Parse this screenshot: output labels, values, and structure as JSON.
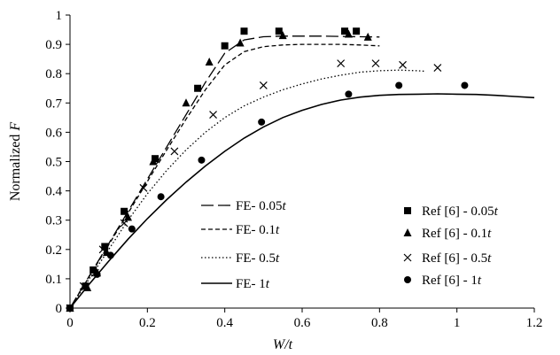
{
  "chart_data": {
    "type": "line",
    "title": "",
    "xlabel": "W/t",
    "ylabel": "Normalized F",
    "xlim": [
      0,
      1.2
    ],
    "ylim": [
      0,
      1
    ],
    "xticks": [
      "0",
      "0.2",
      "0.4",
      "0.6",
      "0.8",
      "1",
      "1.2"
    ],
    "yticks": [
      "0",
      "0.1",
      "0.2",
      "0.3",
      "0.4",
      "0.5",
      "0.6",
      "0.7",
      "0.8",
      "0.9",
      "1"
    ],
    "grid": false,
    "series": [
      {
        "name": "FE- 0.05t",
        "kind": "line",
        "dash": "long-dash",
        "x": [
          0,
          0.05,
          0.1,
          0.15,
          0.2,
          0.25,
          0.3,
          0.35,
          0.4,
          0.45,
          0.5,
          0.55,
          0.6,
          0.65,
          0.7,
          0.75,
          0.8
        ],
        "y": [
          0,
          0.11,
          0.22,
          0.33,
          0.44,
          0.55,
          0.66,
          0.77,
          0.87,
          0.915,
          0.926,
          0.928,
          0.928,
          0.928,
          0.927,
          0.926,
          0.925
        ]
      },
      {
        "name": "FE- 0.1t",
        "kind": "line",
        "dash": "short-dash",
        "x": [
          0,
          0.05,
          0.1,
          0.15,
          0.2,
          0.25,
          0.3,
          0.35,
          0.4,
          0.45,
          0.5,
          0.55,
          0.6,
          0.65,
          0.7,
          0.75,
          0.8
        ],
        "y": [
          0,
          0.108,
          0.216,
          0.324,
          0.432,
          0.54,
          0.645,
          0.745,
          0.83,
          0.875,
          0.892,
          0.898,
          0.9,
          0.9,
          0.9,
          0.898,
          0.895
        ]
      },
      {
        "name": "FE- 0.5t",
        "kind": "line",
        "dash": "dotted",
        "x": [
          0,
          0.05,
          0.1,
          0.15,
          0.2,
          0.25,
          0.3,
          0.35,
          0.4,
          0.45,
          0.5,
          0.55,
          0.6,
          0.65,
          0.7,
          0.75,
          0.8,
          0.85,
          0.9,
          0.92
        ],
        "y": [
          0,
          0.1,
          0.2,
          0.3,
          0.39,
          0.47,
          0.54,
          0.6,
          0.65,
          0.69,
          0.72,
          0.745,
          0.765,
          0.782,
          0.795,
          0.805,
          0.81,
          0.812,
          0.81,
          0.808
        ]
      },
      {
        "name": "FE- 1t",
        "kind": "line",
        "dash": "solid",
        "x": [
          0,
          0.05,
          0.1,
          0.15,
          0.2,
          0.25,
          0.3,
          0.35,
          0.4,
          0.45,
          0.5,
          0.55,
          0.6,
          0.65,
          0.7,
          0.75,
          0.8,
          0.85,
          0.9,
          0.95,
          1.0,
          1.05,
          1.1,
          1.15,
          1.2
        ],
        "y": [
          0,
          0.082,
          0.16,
          0.235,
          0.305,
          0.37,
          0.43,
          0.485,
          0.535,
          0.58,
          0.618,
          0.65,
          0.675,
          0.695,
          0.71,
          0.72,
          0.726,
          0.729,
          0.73,
          0.731,
          0.73,
          0.729,
          0.726,
          0.722,
          0.718
        ]
      },
      {
        "name": "Ref [6] - 0.05t",
        "kind": "scatter",
        "marker": "square",
        "x": [
          0,
          0.04,
          0.06,
          0.09,
          0.14,
          0.22,
          0.33,
          0.4,
          0.45,
          0.54,
          0.71,
          0.74
        ],
        "y": [
          0,
          0.075,
          0.13,
          0.21,
          0.33,
          0.51,
          0.75,
          0.895,
          0.945,
          0.945,
          0.945,
          0.945
        ]
      },
      {
        "name": "Ref [6] - 0.1t",
        "kind": "scatter",
        "marker": "triangle",
        "x": [
          0,
          0.045,
          0.07,
          0.095,
          0.15,
          0.215,
          0.3,
          0.36,
          0.44,
          0.55,
          0.72,
          0.77
        ],
        "y": [
          0,
          0.07,
          0.12,
          0.19,
          0.31,
          0.5,
          0.7,
          0.84,
          0.905,
          0.93,
          0.935,
          0.925
        ]
      },
      {
        "name": "Ref [6] - 0.5t",
        "kind": "scatter",
        "marker": "x",
        "x": [
          0,
          0.035,
          0.065,
          0.085,
          0.14,
          0.19,
          0.27,
          0.37,
          0.5,
          0.7,
          0.79,
          0.86,
          0.95
        ],
        "y": [
          0,
          0.075,
          0.12,
          0.2,
          0.29,
          0.41,
          0.535,
          0.66,
          0.76,
          0.835,
          0.835,
          0.83,
          0.82
        ]
      },
      {
        "name": "Ref [6] - 1t",
        "kind": "scatter",
        "marker": "circle",
        "x": [
          0,
          0.04,
          0.07,
          0.105,
          0.16,
          0.235,
          0.34,
          0.495,
          0.72,
          0.85,
          1.02
        ],
        "y": [
          0,
          0.075,
          0.115,
          0.18,
          0.27,
          0.38,
          0.505,
          0.635,
          0.73,
          0.76,
          0.76
        ]
      }
    ],
    "legend": {
      "fe_prefix": "FE- ",
      "ref_prefix": "Ref [6] - ",
      "items": [
        {
          "key": "fe005",
          "label": "0.05",
          "suffix": "t"
        },
        {
          "key": "fe01",
          "label": "0.1",
          "suffix": "t"
        },
        {
          "key": "fe05",
          "label": "0.5",
          "suffix": "t"
        },
        {
          "key": "fe1",
          "label": "1",
          "suffix": "t"
        },
        {
          "key": "ref005",
          "label": "0.05",
          "suffix": "t"
        },
        {
          "key": "ref01",
          "label": "0.1",
          "suffix": "t"
        },
        {
          "key": "ref05",
          "label": "0.5",
          "suffix": "t"
        },
        {
          "key": "ref1",
          "label": "1",
          "suffix": "t"
        }
      ]
    }
  }
}
